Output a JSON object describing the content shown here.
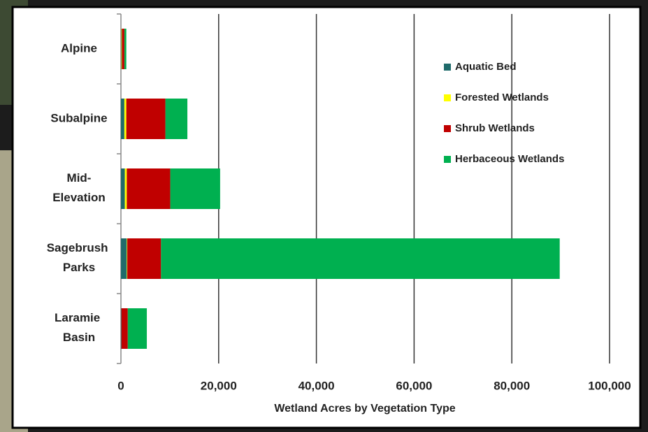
{
  "chart_data": {
    "type": "stacked-bar-horizontal",
    "x_label": "Wetland Acres by Vegetation Type",
    "categories": [
      "Alpine",
      "Subalpine",
      "Mid-Elevation",
      "Sagebrush Parks",
      "Laramie Basin"
    ],
    "series": [
      {
        "name": "Aquatic Bed",
        "color": "#1f6b6b",
        "values": [
          100,
          700,
          800,
          1200,
          100
        ]
      },
      {
        "name": "Forested Wetlands",
        "color": "#ffff00",
        "values": [
          100,
          400,
          400,
          100,
          0
        ]
      },
      {
        "name": "Shrub Wetlands",
        "color": "#c00000",
        "values": [
          500,
          8000,
          8900,
          6900,
          1300
        ]
      },
      {
        "name": "Herbaceous Wetlands",
        "color": "#00b050",
        "values": [
          400,
          4500,
          10200,
          81600,
          3900
        ]
      }
    ],
    "xlim": [
      0,
      100000
    ],
    "xticks": [
      0,
      {
        "value": 20000,
        "label": "20,000"
      },
      {
        "value": 40000,
        "label": "40,000"
      },
      {
        "value": 60000,
        "label": "60,000"
      },
      {
        "value": 80000,
        "label": "80,000"
      },
      {
        "value": 100000,
        "label": "100,000"
      }
    ],
    "grid": true
  }
}
